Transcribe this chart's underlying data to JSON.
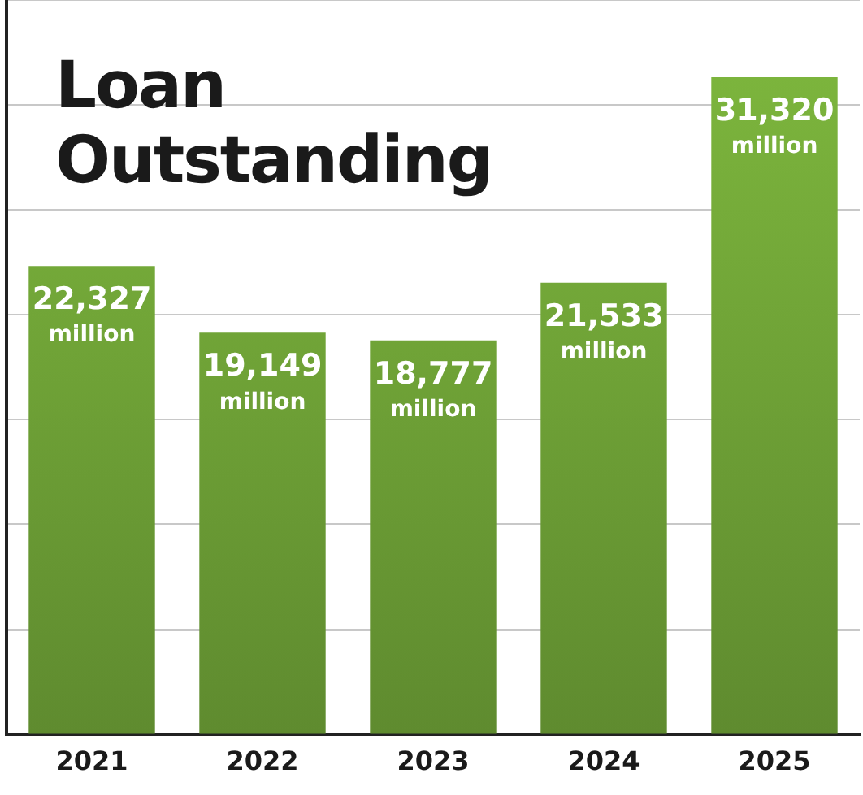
{
  "chart_data": {
    "type": "bar",
    "title": "Loan Outstanding",
    "categories": [
      "2021",
      "2022",
      "2023",
      "2024",
      "2025"
    ],
    "values": [
      22327,
      19149,
      18777,
      21533,
      31320
    ],
    "value_labels": [
      "22,327 million",
      "19,149 million",
      "18,777 million",
      "21,533 million",
      "31,320 million"
    ],
    "color": "#7fb93e",
    "ylim": [
      0,
      35000
    ],
    "yticks": [
      {
        "value": 0,
        "label": null
      },
      {
        "value": 5000,
        "label": null
      },
      {
        "value": 10000,
        "label": null
      },
      {
        "value": 15000,
        "label": null
      },
      {
        "value": 20000,
        "label": null
      },
      {
        "value": 25000,
        "label": null
      },
      {
        "value": 30000,
        "label": null
      },
      {
        "value": 35000,
        "label": null
      }
    ],
    "tick_labels": "x",
    "grid": "y",
    "legend": false
  }
}
